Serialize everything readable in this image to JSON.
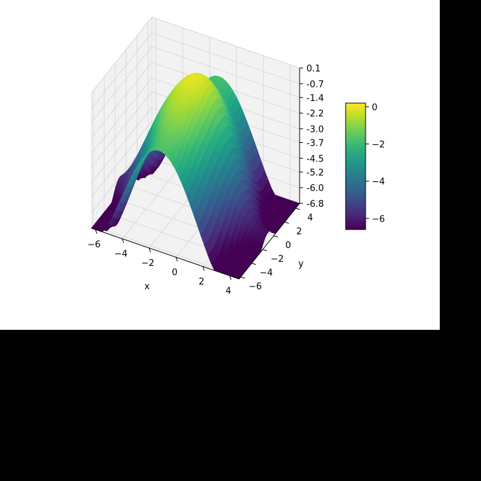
{
  "chart_data": {
    "type": "surface",
    "title": "",
    "xlabel": "x",
    "ylabel": "y",
    "zlabel": "",
    "x_range": [
      -6.3,
      4.7
    ],
    "y_range": [
      -6.3,
      4.7
    ],
    "z_range": [
      -6.8,
      0.1
    ],
    "x_ticks": [
      -6,
      -4,
      -2,
      0,
      2,
      4
    ],
    "y_ticks": [
      -6,
      -4,
      -2,
      0,
      2,
      4
    ],
    "z_ticks": [
      "0.1",
      "-0.7",
      "-1.4",
      "-2.2",
      "-3.0",
      "-3.7",
      "-4.5",
      "-5.2",
      "-6.0",
      "-6.8"
    ],
    "colormap": "viridis",
    "colorbar": {
      "range": [
        -6.6,
        0.2
      ],
      "ticks": [
        0,
        -2,
        -4,
        -6
      ]
    },
    "grid": true,
    "background_color": "#ffffff",
    "outside_color": "#000000"
  }
}
